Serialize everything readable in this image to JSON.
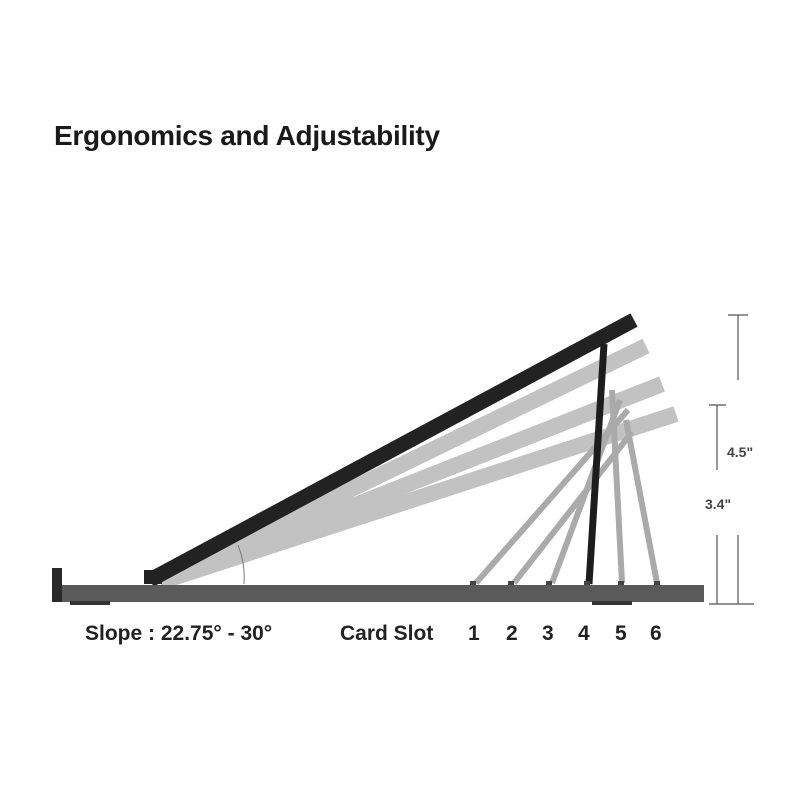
{
  "title": "Ergonomics and Adjustability",
  "slope_label": "Slope : 22.75° - 30°",
  "card_slot_label": "Card Slot",
  "slots": [
    "1",
    "2",
    "3",
    "4",
    "5",
    "6"
  ],
  "dimensions": {
    "upper": "4.5\"",
    "lower": "3.4\""
  },
  "colors": {
    "active": "#222222",
    "ghost": "#9a9a9a",
    "base": "#555555"
  }
}
